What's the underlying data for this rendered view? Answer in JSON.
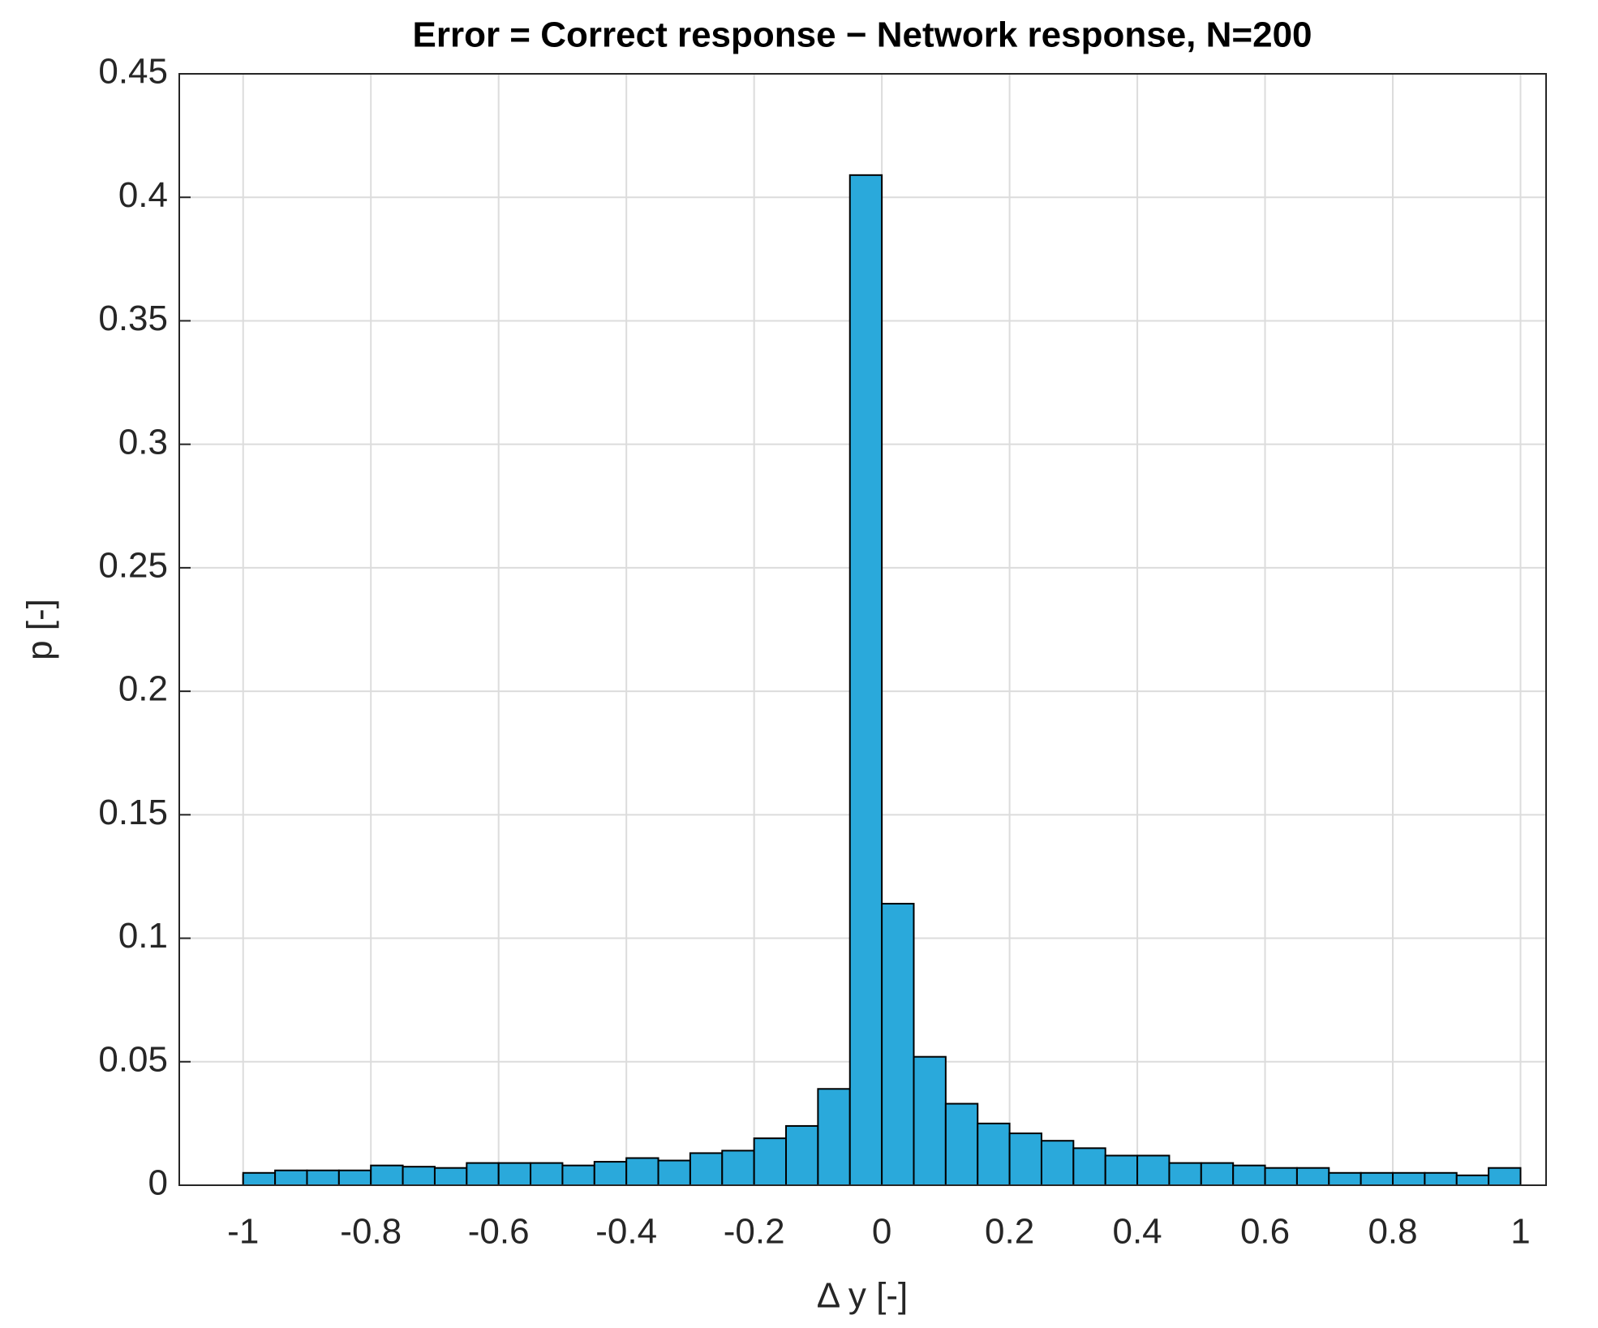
{
  "chart_data": {
    "type": "histogram",
    "title": "Error = Correct response − Network response, N=200",
    "xlabel": "Δ y [-]",
    "ylabel": "p [-]",
    "bins": [
      -1,
      -0.95,
      -0.9,
      -0.85,
      -0.8,
      -0.75,
      -0.7,
      -0.65,
      -0.6,
      -0.55,
      -0.5,
      -0.45,
      -0.4,
      -0.35,
      -0.3,
      -0.25,
      -0.2,
      -0.15,
      -0.1,
      -0.05,
      0,
      0.05,
      0.1,
      0.15,
      0.2,
      0.25,
      0.3,
      0.35,
      0.4,
      0.45,
      0.5,
      0.55,
      0.6,
      0.65,
      0.7,
      0.75,
      0.8,
      0.85,
      0.9,
      0.95,
      1
    ],
    "values": [
      0.005,
      0.006,
      0.006,
      0.006,
      0.008,
      0.0075,
      0.007,
      0.009,
      0.009,
      0.009,
      0.008,
      0.0095,
      0.011,
      0.01,
      0.013,
      0.014,
      0.019,
      0.024,
      0.039,
      0.409,
      0.114,
      0.052,
      0.033,
      0.025,
      0.021,
      0.018,
      0.015,
      0.012,
      0.012,
      0.009,
      0.009,
      0.008,
      0.007,
      0.007,
      0.005,
      0.005,
      0.005,
      0.005,
      0.004,
      0.007
    ],
    "color": "#2aa9db",
    "xlim": [
      -1.1,
      1.04
    ],
    "ylim": [
      0,
      0.45
    ],
    "xticks": [
      -1,
      -0.8,
      -0.6,
      -0.4,
      -0.2,
      0,
      0.2,
      0.4,
      0.6,
      0.8,
      1
    ],
    "yticks": [
      0,
      0.05,
      0.1,
      0.15,
      0.2,
      0.25,
      0.3,
      0.35,
      0.4,
      0.45
    ],
    "grid": true
  }
}
